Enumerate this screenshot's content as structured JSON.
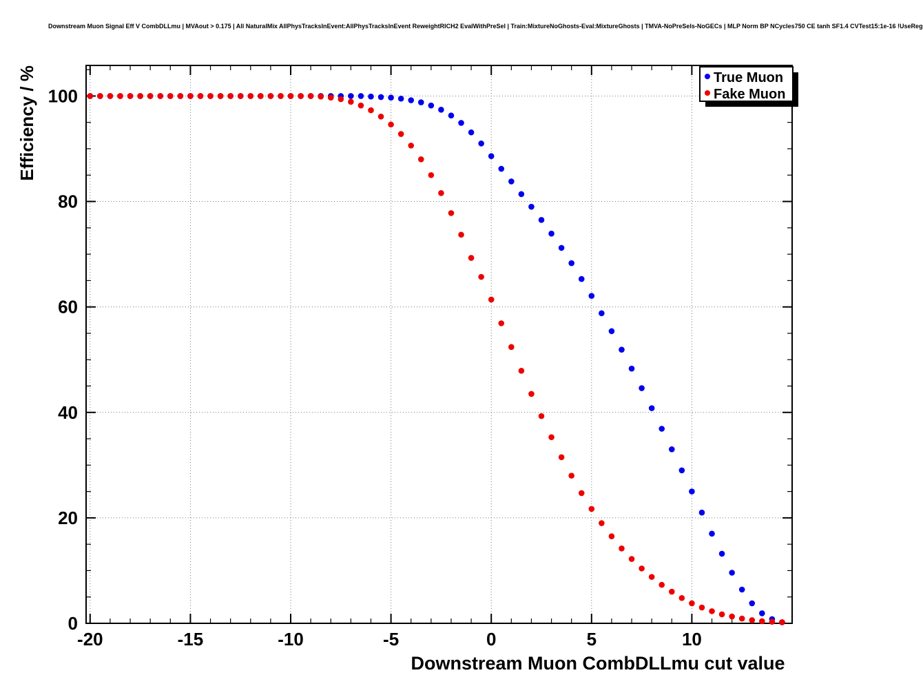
{
  "page_title": "Downstream Muon Signal Eff V CombDLLmu | MVAout > 0.175 | All NaturalMix AllPhysTracksInEvent:AllPhysTracksInEvent ReweightRICH2 EvalWithPreSel | Train:MixtureNoGhosts-Eval:MixtureGhosts | TMVA-NoPreSels-NoGECs | MLP Norm BP NCycles750 CE tanh SF1.4 CVTest15:1e-16 !UseReg",
  "chart_data": {
    "type": "scatter",
    "title": "Downstream Muon Signal Eff V CombDLLmu | MVAout > 0.175 | All NaturalMix AllPhysTracksInEvent:AllPhysTracksInEvent ReweightRICH2 EvalWithPreSel | Train:MixtureNoGhosts-Eval:MixtureGhosts | TMVA-NoPreSels-NoGECs | MLP Norm BP NCycles750 CE tanh SF1.4 CVTest15:1e-16 !UseReg",
    "xlabel": "Downstream Muon CombDLLmu cut value",
    "ylabel": "Efficiency / %",
    "xlim": [
      -20.2,
      15.0
    ],
    "ylim": [
      0,
      105.8
    ],
    "x_major_ticks": [
      -20,
      -15,
      -10,
      -5,
      0,
      5,
      10
    ],
    "x_minor_step": 1,
    "y_major_ticks": [
      0,
      20,
      40,
      60,
      80,
      100
    ],
    "y_minor_step": 5,
    "grid": "dotted-on-major-ticks",
    "marker": "filled-circle",
    "legend": {
      "position": "top-right",
      "entries": [
        {
          "label": "True Muon",
          "color": "#0000ee"
        },
        {
          "label": "Fake Muon",
          "color": "#ee0000"
        }
      ]
    },
    "x": [
      -20,
      -19.5,
      -19,
      -18.5,
      -18,
      -17.5,
      -17,
      -16.5,
      -16,
      -15.5,
      -15,
      -14.5,
      -14,
      -13.5,
      -13,
      -12.5,
      -12,
      -11.5,
      -11,
      -10.5,
      -10,
      -9.5,
      -9,
      -8.5,
      -8,
      -7.5,
      -7,
      -6.5,
      -6,
      -5.5,
      -5,
      -4.5,
      -4,
      -3.5,
      -3,
      -2.5,
      -2,
      -1.5,
      -1,
      -0.5,
      0,
      0.5,
      1,
      1.5,
      2,
      2.5,
      3,
      3.5,
      4,
      4.5,
      5,
      5.5,
      6,
      6.5,
      7,
      7.5,
      8,
      8.5,
      9,
      9.5,
      10,
      10.5,
      11,
      11.5,
      12,
      12.5,
      13,
      13.5,
      14,
      14.5
    ],
    "series": [
      {
        "name": "True Muon",
        "color": "#0000ee",
        "values": [
          100,
          100,
          100,
          100,
          100,
          100,
          100,
          100,
          100,
          100,
          100,
          100,
          100,
          100,
          100,
          100,
          100,
          100,
          100,
          100,
          100,
          100,
          100,
          100,
          100,
          100,
          100,
          100,
          99.9,
          99.8,
          99.7,
          99.5,
          99.2,
          98.8,
          98.2,
          97.4,
          96.3,
          94.9,
          93.1,
          91.0,
          88.6,
          86.2,
          83.8,
          81.4,
          79.0,
          76.5,
          73.9,
          71.2,
          68.3,
          65.3,
          62.1,
          58.8,
          55.4,
          51.9,
          48.3,
          44.6,
          40.8,
          36.9,
          33.0,
          29.0,
          25.0,
          21.0,
          17.0,
          13.2,
          9.6,
          6.4,
          3.8,
          1.9,
          0.8,
          0.2
        ]
      },
      {
        "name": "Fake Muon",
        "color": "#ee0000",
        "values": [
          100,
          100,
          100,
          100,
          100,
          100,
          100,
          100,
          100,
          100,
          100,
          100,
          100,
          100,
          100,
          100,
          100,
          100,
          100,
          100,
          100,
          100,
          100,
          99.9,
          99.7,
          99.4,
          98.9,
          98.2,
          97.3,
          96.1,
          94.6,
          92.8,
          90.6,
          88.0,
          85.0,
          81.6,
          77.8,
          73.7,
          69.3,
          65.7,
          61.4,
          56.9,
          52.4,
          47.9,
          43.5,
          39.3,
          35.3,
          31.5,
          28.0,
          24.7,
          21.7,
          19.0,
          16.5,
          14.2,
          12.2,
          10.4,
          8.8,
          7.3,
          6.0,
          4.8,
          3.8,
          3.0,
          2.3,
          1.7,
          1.3,
          0.9,
          0.6,
          0.4,
          0.3,
          0.2
        ]
      }
    ]
  }
}
